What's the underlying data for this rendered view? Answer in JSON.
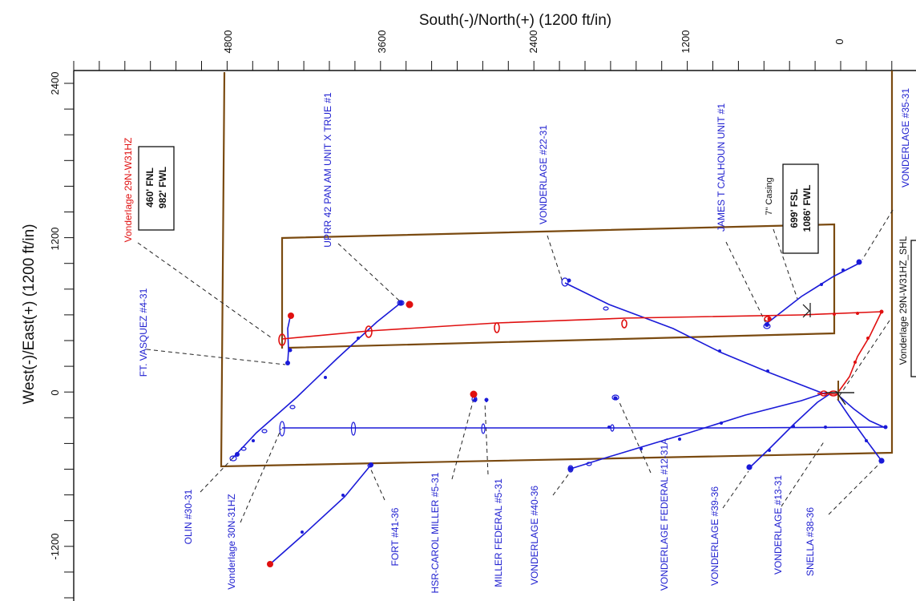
{
  "axes": {
    "top_title": "South(-)/North(+) (1200 ft/in)",
    "left_title": "West(-)/East(+) (1200 ft/in)",
    "top_ticks": [
      "4800",
      "3600",
      "2400",
      "1200",
      "0"
    ],
    "left_ticks": [
      "2400",
      "1200",
      "0",
      "-1200"
    ]
  },
  "colors": {
    "well": "#1a1ad8",
    "subject": "#e01010",
    "lease": "#7a4a10",
    "text": "#2020d0"
  },
  "labels": {
    "w31hz": "Vonderlage 29N-W31HZ",
    "w31hz_box_1": "460' FNL",
    "w31hz_box_2": "982' FWL",
    "ft_vasquez": "FT. VASQUEZ #4-31",
    "uprr": "UPRR 42 PAN AM UNIT X TRUE #1",
    "v22": "VONDERLAGE #22-31",
    "calhoun": "JAMES T CALHOUN UNIT #1",
    "casing": "7\" Casing",
    "box_1": "699' FSL",
    "box_2": "1086' FWL",
    "v35": "VONDERLAGE #35-31",
    "shl": "Vonderlage 29N-W31HZ_SHL",
    "olin": "OLIN #30-31",
    "v30n": "Vonderlage 30N-31HZ",
    "fort": "FORT #41-36",
    "hsr": "HSR-CAROL MILLER #5-31",
    "miller": "MILLER FEDERAL #5-31",
    "v40": "VONDERLAGE #40-36",
    "vfed": "VONDERLAGE FEDERAL #12-31A",
    "v39": "VONDERLAGE #39-36",
    "v13": "VONDERLAGE #13-31",
    "snella": "SNELLA #38-36"
  }
}
